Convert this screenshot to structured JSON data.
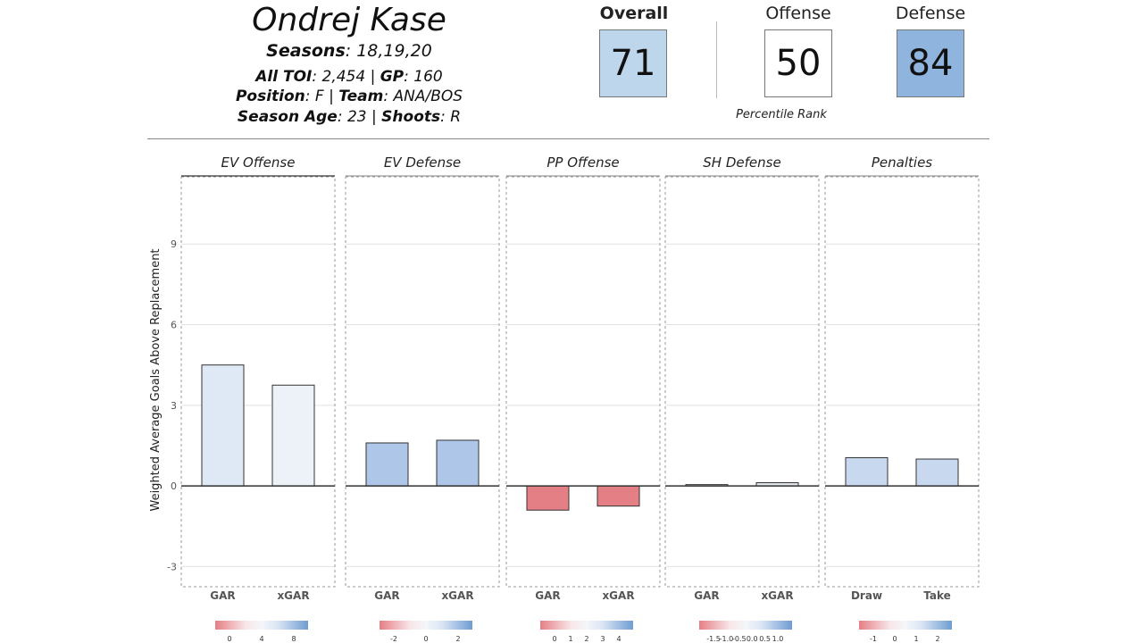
{
  "player": {
    "name": "Ondrej Kase",
    "seasons_label": "Seasons",
    "seasons": "18,19,20",
    "toi_label": "All TOI",
    "toi": "2,454",
    "gp_label": "GP",
    "gp": "160",
    "position_label": "Position",
    "position": "F",
    "team_label": "Team",
    "team": "ANA/BOS",
    "age_label": "Season Age",
    "age": "23",
    "shoots_label": "Shoots",
    "shoots": "R"
  },
  "ratings": {
    "overall_label": "Overall",
    "overall": "71",
    "offense_label": "Offense",
    "offense": "50",
    "defense_label": "Defense",
    "defense": "84",
    "caption": "Percentile Rank",
    "colors": {
      "overall": "#bed6ec",
      "offense": "#ffffff",
      "defense": "#8fb4de"
    }
  },
  "chart_data": {
    "type": "bar",
    "ylabel": "Weighted Average Goals Above Replacement",
    "ylim": [
      -3.75,
      11.5
    ],
    "yticks": [
      -3,
      0,
      3,
      6,
      9
    ],
    "grid": true,
    "panels": [
      {
        "title": "EV Offense",
        "categories": [
          "GAR",
          "xGAR"
        ],
        "values": [
          4.5,
          3.75
        ],
        "colors": [
          "#dfe8f5",
          "#edf2f9"
        ],
        "legend_ticks": [
          "0",
          "4",
          "8"
        ]
      },
      {
        "title": "EV Defense",
        "categories": [
          "GAR",
          "xGAR"
        ],
        "values": [
          1.6,
          1.7
        ],
        "colors": [
          "#aec6e7",
          "#aec6e7"
        ],
        "legend_ticks": [
          "-2",
          "0",
          "2"
        ]
      },
      {
        "title": "PP Offense",
        "categories": [
          "GAR",
          "xGAR"
        ],
        "values": [
          -0.9,
          -0.75
        ],
        "colors": [
          "#e57f86",
          "#e57f86"
        ],
        "legend_ticks": [
          "0",
          "1",
          "2",
          "3",
          "4"
        ]
      },
      {
        "title": "SH Defense",
        "categories": [
          "GAR",
          "xGAR"
        ],
        "values": [
          0.05,
          0.12
        ],
        "colors": [
          "#e3e6ec",
          "#e3e6ec"
        ],
        "legend_ticks": [
          "-1.5",
          "-1.0",
          "-0.5",
          "0.0",
          "0.5",
          "1.0"
        ]
      },
      {
        "title": "Penalties",
        "categories": [
          "Draw",
          "Take"
        ],
        "values": [
          1.05,
          1.0
        ],
        "colors": [
          "#c8d9ef",
          "#c8d9ef"
        ],
        "legend_ticks": [
          "-1",
          "0",
          "1",
          "2"
        ]
      }
    ]
  }
}
